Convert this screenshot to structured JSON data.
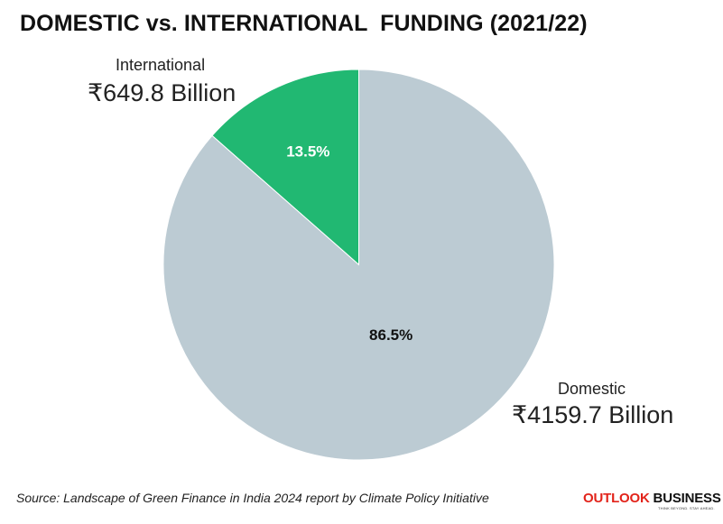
{
  "chart_data": {
    "type": "pie",
    "title": "DOMESTIC vs. INTERNATIONAL  FUNDING (2021/22)",
    "unit": "₹ Billion",
    "slices": [
      {
        "name": "International",
        "value": 649.8,
        "value_label": "₹649.8 Billion",
        "percent": 13.5,
        "percent_label": "13.5%",
        "color": "#21b872"
      },
      {
        "name": "Domestic",
        "value": 4159.7,
        "value_label": "₹4159.7 Billion",
        "percent": 86.5,
        "percent_label": "86.5%",
        "color": "#bccbd3"
      }
    ]
  },
  "footer": {
    "source": "Source: Landscape of Green Finance in India 2024 report by Climate Policy Initiative",
    "brand_part1": "OUTLOOK",
    "brand_part2": " BUSINESS",
    "brand_tagline": "THINK BEYOND. STAY AHEAD."
  }
}
